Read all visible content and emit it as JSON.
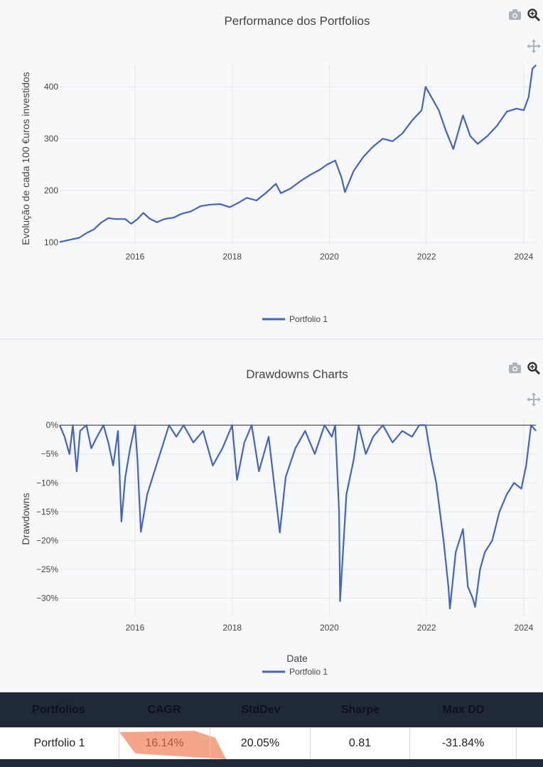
{
  "chart_data": [
    {
      "type": "line",
      "title": "Performance dos Portfolios",
      "xlabel": "",
      "ylabel": "Evolução de cada 100 €uros investidos",
      "xlim": [
        2014.45,
        2024.25
      ],
      "ylim": [
        96,
        444
      ],
      "x_ticks": [
        2016,
        2018,
        2020,
        2022,
        2024
      ],
      "y_ticks": [
        100,
        200,
        300,
        400
      ],
      "x_tick_labels": [
        "2016",
        "2018",
        "2020",
        "2022",
        "2024"
      ],
      "y_tick_labels": [
        "100",
        "200",
        "300",
        "400"
      ],
      "legend": "bottom-center",
      "series": [
        {
          "name": "Portfolio 1",
          "color": "#4363c9",
          "points": [
            [
              2014.45,
              101
            ],
            [
              2014.65,
              105
            ],
            [
              2014.85,
              109
            ],
            [
              2015.0,
              118
            ],
            [
              2015.15,
              125
            ],
            [
              2015.3,
              138
            ],
            [
              2015.45,
              147
            ],
            [
              2015.6,
              145
            ],
            [
              2015.8,
              145
            ],
            [
              2015.92,
              136
            ],
            [
              2016.05,
              145
            ],
            [
              2016.17,
              157
            ],
            [
              2016.3,
              146
            ],
            [
              2016.45,
              139
            ],
            [
              2016.6,
              145
            ],
            [
              2016.8,
              148
            ],
            [
              2016.95,
              155
            ],
            [
              2017.15,
              160
            ],
            [
              2017.35,
              170
            ],
            [
              2017.55,
              173
            ],
            [
              2017.75,
              174
            ],
            [
              2017.95,
              168
            ],
            [
              2018.1,
              175
            ],
            [
              2018.3,
              186
            ],
            [
              2018.5,
              181
            ],
            [
              2018.7,
              196
            ],
            [
              2018.9,
              213
            ],
            [
              2019.0,
              195
            ],
            [
              2019.2,
              204
            ],
            [
              2019.4,
              218
            ],
            [
              2019.6,
              230
            ],
            [
              2019.8,
              240
            ],
            [
              2019.95,
              250
            ],
            [
              2020.12,
              258
            ],
            [
              2020.25,
              225
            ],
            [
              2020.32,
              197
            ],
            [
              2020.5,
              238
            ],
            [
              2020.7,
              265
            ],
            [
              2020.9,
              285
            ],
            [
              2021.1,
              300
            ],
            [
              2021.3,
              295
            ],
            [
              2021.5,
              310
            ],
            [
              2021.7,
              335
            ],
            [
              2021.9,
              355
            ],
            [
              2021.98,
              400
            ],
            [
              2022.1,
              380
            ],
            [
              2022.25,
              355
            ],
            [
              2022.4,
              315
            ],
            [
              2022.55,
              280
            ],
            [
              2022.75,
              345
            ],
            [
              2022.9,
              305
            ],
            [
              2023.05,
              290
            ],
            [
              2023.25,
              305
            ],
            [
              2023.45,
              325
            ],
            [
              2023.65,
              352
            ],
            [
              2023.85,
              358
            ],
            [
              2024.0,
              355
            ],
            [
              2024.1,
              380
            ],
            [
              2024.18,
              435
            ],
            [
              2024.25,
              442
            ]
          ]
        }
      ]
    },
    {
      "type": "line",
      "title": "Drawdowns Charts",
      "xlabel": "Date",
      "ylabel": "Drawdowns",
      "xlim": [
        2014.45,
        2024.25
      ],
      "ylim": [
        -33,
        1
      ],
      "x_ticks": [
        2016,
        2018,
        2020,
        2022,
        2024
      ],
      "y_ticks": [
        0,
        -5,
        -10,
        -15,
        -20,
        -25,
        -30
      ],
      "x_tick_labels": [
        "2016",
        "2018",
        "2020",
        "2022",
        "2024"
      ],
      "y_tick_labels": [
        "0%",
        "−5%",
        "−10%",
        "−15%",
        "−20%",
        "−25%",
        "−30%"
      ],
      "legend": "bottom-center",
      "series": [
        {
          "name": "Portfolio 1",
          "color": "#4363c9",
          "points": [
            [
              2014.45,
              0
            ],
            [
              2014.55,
              -2
            ],
            [
              2014.65,
              -5
            ],
            [
              2014.72,
              0
            ],
            [
              2014.8,
              -8
            ],
            [
              2014.87,
              -1
            ],
            [
              2015.0,
              0
            ],
            [
              2015.1,
              -4
            ],
            [
              2015.22,
              -2
            ],
            [
              2015.35,
              0
            ],
            [
              2015.45,
              -3
            ],
            [
              2015.55,
              -7
            ],
            [
              2015.65,
              -1
            ],
            [
              2015.72,
              -16.7
            ],
            [
              2015.8,
              -9
            ],
            [
              2015.9,
              -4
            ],
            [
              2016.0,
              0
            ],
            [
              2016.05,
              -6
            ],
            [
              2016.12,
              -18.5
            ],
            [
              2016.25,
              -12
            ],
            [
              2016.4,
              -8
            ],
            [
              2016.55,
              -4
            ],
            [
              2016.7,
              0
            ],
            [
              2016.85,
              -2
            ],
            [
              2017.0,
              0
            ],
            [
              2017.2,
              -3
            ],
            [
              2017.4,
              -1
            ],
            [
              2017.6,
              -7
            ],
            [
              2017.8,
              -4
            ],
            [
              2018.0,
              0
            ],
            [
              2018.1,
              -9.5
            ],
            [
              2018.25,
              -3
            ],
            [
              2018.4,
              0
            ],
            [
              2018.55,
              -8
            ],
            [
              2018.75,
              -2
            ],
            [
              2018.98,
              -18.6
            ],
            [
              2019.1,
              -9
            ],
            [
              2019.3,
              -4
            ],
            [
              2019.5,
              -1
            ],
            [
              2019.7,
              -5
            ],
            [
              2019.9,
              0
            ],
            [
              2020.05,
              -2
            ],
            [
              2020.12,
              0
            ],
            [
              2020.2,
              -15
            ],
            [
              2020.22,
              -30.5
            ],
            [
              2020.35,
              -12
            ],
            [
              2020.5,
              -6
            ],
            [
              2020.6,
              0
            ],
            [
              2020.75,
              -5
            ],
            [
              2020.9,
              -2
            ],
            [
              2021.1,
              0
            ],
            [
              2021.3,
              -3
            ],
            [
              2021.5,
              -1
            ],
            [
              2021.7,
              -2
            ],
            [
              2021.85,
              0
            ],
            [
              2021.98,
              0
            ],
            [
              2022.1,
              -6
            ],
            [
              2022.2,
              -10
            ],
            [
              2022.35,
              -20
            ],
            [
              2022.45,
              -28
            ],
            [
              2022.48,
              -31.8
            ],
            [
              2022.6,
              -22
            ],
            [
              2022.75,
              -18
            ],
            [
              2022.85,
              -28
            ],
            [
              2022.95,
              -30
            ],
            [
              2023.0,
              -31.5
            ],
            [
              2023.1,
              -25
            ],
            [
              2023.2,
              -22
            ],
            [
              2023.35,
              -20
            ],
            [
              2023.5,
              -15
            ],
            [
              2023.65,
              -12
            ],
            [
              2023.8,
              -10
            ],
            [
              2023.95,
              -11
            ],
            [
              2024.05,
              -7
            ],
            [
              2024.15,
              0
            ],
            [
              2024.25,
              -1
            ]
          ]
        }
      ]
    }
  ],
  "table": {
    "headers": [
      "Portfolios",
      "CAGR",
      "StdDev",
      "Sharpe",
      "Max DD"
    ],
    "rows": [
      [
        "Portfolio 1",
        "16.14%",
        "20.05%",
        "0.81",
        "-31.84%"
      ]
    ]
  },
  "icons": [
    "camera-icon",
    "zoom-icon",
    "pan-icon"
  ]
}
